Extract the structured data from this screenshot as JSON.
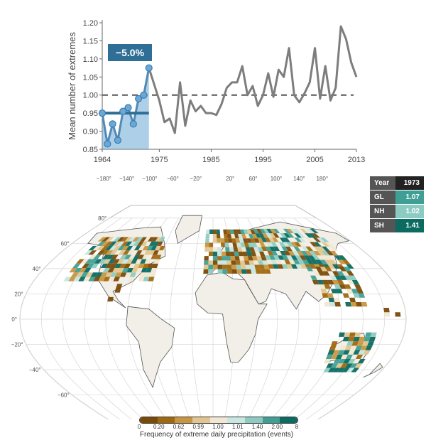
{
  "chart_data": [
    {
      "type": "line",
      "title": "",
      "xlabel": "",
      "ylabel": "Mean number of extremes",
      "xlim": [
        1964,
        2013
      ],
      "ylim": [
        0.85,
        1.2
      ],
      "x_ticks": [
        "1964",
        "1975",
        "1985",
        "1995",
        "2005",
        "2013"
      ],
      "y_ticks": [
        "0.85",
        "0.90",
        "0.95",
        "1.00",
        "1.05",
        "1.10",
        "1.15",
        "1.20"
      ],
      "reference_line": 1.0,
      "highlight_mean": 0.95,
      "annotation": "−5.0%",
      "grid": false,
      "series": [
        {
          "x": [
            1964,
            1965,
            1966,
            1967,
            1968,
            1969,
            1970,
            1971,
            1972,
            1973,
            1974,
            1975,
            1976,
            1977,
            1978,
            1979,
            1980,
            1981,
            1982,
            1983,
            1984,
            1985,
            1986,
            1987,
            1988,
            1989,
            1990,
            1991,
            1992,
            1993,
            1994,
            1995,
            1996,
            1997,
            1998,
            1999,
            2000,
            2001,
            2002,
            2003,
            2004,
            2005,
            2006,
            2007,
            2008,
            2009,
            2010,
            2011,
            2012,
            2013
          ],
          "values": [
            0.95,
            0.865,
            0.92,
            0.875,
            0.955,
            0.965,
            0.92,
            0.99,
            1.0,
            1.075,
            1.03,
            0.985,
            0.925,
            0.935,
            0.895,
            1.035,
            0.915,
            0.985,
            0.955,
            0.97,
            0.95,
            0.95,
            0.945,
            0.975,
            1.02,
            1.035,
            1.035,
            1.08,
            1.0,
            1.025,
            0.97,
            1.0,
            1.06,
            0.995,
            1.07,
            1.05,
            1.13,
            1.0,
            0.98,
            1.005,
            1.035,
            1.13,
            0.99,
            1.08,
            0.985,
            1.02,
            1.19,
            1.155,
            1.09,
            1.05
          ]
        }
      ],
      "colors": {
        "line": "#7d7d7d",
        "highlight": "#4a8cc0",
        "highlight_fill": "#6aa9d6",
        "badge": "#2f6f96"
      }
    },
    {
      "type": "heatmap",
      "title": "",
      "colorbar_label": "Frequency of extreme daily precipitation (events)",
      "colorbar_ticks": [
        "0",
        "0.20",
        "0.62",
        "0.99",
        "1.00",
        "1.01",
        "1.40",
        "2.00",
        "8"
      ],
      "colorbar_colors": [
        "#7a4a08",
        "#a0680f",
        "#c8963f",
        "#e2c58f",
        "#f1e7d2",
        "#c9e6e1",
        "#8ccbc2",
        "#3f9f94",
        "#0b6b61"
      ],
      "longitude_ticks": [
        "−180°",
        "−140°",
        "−100°",
        "−60°",
        "−20°",
        "20°",
        "60°",
        "100°",
        "140°",
        "180°"
      ],
      "latitude_ticks": [
        "80°",
        "60°",
        "40°",
        "20°",
        "0°",
        "−20°",
        "−40°",
        "−60°"
      ]
    }
  ],
  "year_table": {
    "header": [
      "Year",
      "1973"
    ],
    "rows": [
      {
        "label": "GL",
        "value": "1.07",
        "color": "#3f9f94"
      },
      {
        "label": "NH",
        "value": "1.02",
        "color": "#8ccbc2"
      },
      {
        "label": "SH",
        "value": "1.41",
        "color": "#0b6b61"
      }
    ]
  }
}
